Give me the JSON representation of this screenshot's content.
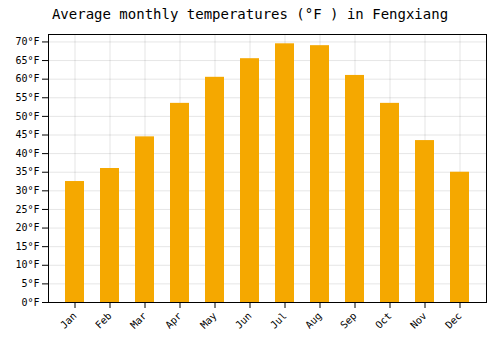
{
  "chart_data": {
    "type": "bar",
    "title": "Average monthly temperatures (°F ) in Fengxiang",
    "categories": [
      "Jan",
      "Feb",
      "Mar",
      "Apr",
      "May",
      "Jun",
      "Jul",
      "Aug",
      "Sep",
      "Oct",
      "Nov",
      "Dec"
    ],
    "values": [
      32.5,
      36,
      44.5,
      53.5,
      60.5,
      65.5,
      69.5,
      69,
      61,
      53.5,
      43.5,
      35
    ],
    "color": "#F5A800",
    "ylim": [
      0,
      72
    ],
    "yticks": [
      {
        "value": 0,
        "label": "0°F"
      },
      {
        "value": 5,
        "label": "5°F"
      },
      {
        "value": 10,
        "label": "10°F"
      },
      {
        "value": 15,
        "label": "15°F"
      },
      {
        "value": 20,
        "label": "20°F"
      },
      {
        "value": 25,
        "label": "25°F"
      },
      {
        "value": 30,
        "label": "30°F"
      },
      {
        "value": 35,
        "label": "35°F"
      },
      {
        "value": 40,
        "label": "40°F"
      },
      {
        "value": 45,
        "label": "45°F"
      },
      {
        "value": 50,
        "label": "50°F"
      },
      {
        "value": 55,
        "label": "55°F"
      },
      {
        "value": 60,
        "label": "60°F"
      },
      {
        "value": 65,
        "label": "65°F"
      },
      {
        "value": 70,
        "label": "70°F"
      }
    ],
    "grid": true
  }
}
